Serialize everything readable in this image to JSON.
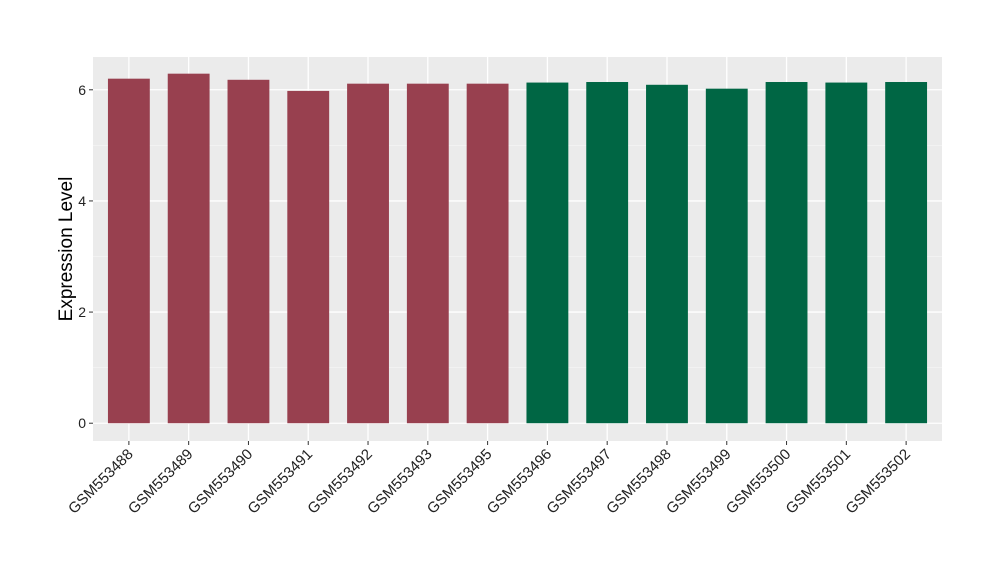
{
  "chart_data": {
    "type": "bar",
    "y_label": "Expression Level",
    "categories": [
      "GSM553488",
      "GSM553489",
      "GSM553490",
      "GSM553491",
      "GSM553492",
      "GSM553493",
      "GSM553495",
      "GSM553496",
      "GSM553497",
      "GSM553498",
      "GSM553499",
      "GSM553500",
      "GSM553501",
      "GSM553502"
    ],
    "values": [
      6.2,
      6.29,
      6.18,
      5.98,
      6.11,
      6.11,
      6.11,
      6.13,
      6.14,
      6.09,
      6.02,
      6.14,
      6.13,
      6.14
    ],
    "colors": [
      "#98404f",
      "#98404f",
      "#98404f",
      "#98404f",
      "#98404f",
      "#98404f",
      "#98404f",
      "#006644",
      "#006644",
      "#006644",
      "#006644",
      "#006644",
      "#006644",
      "#006644"
    ],
    "ylim": [
      -0.32,
      6.59
    ],
    "yticks": [
      0,
      2,
      4,
      6
    ],
    "grid": true
  }
}
